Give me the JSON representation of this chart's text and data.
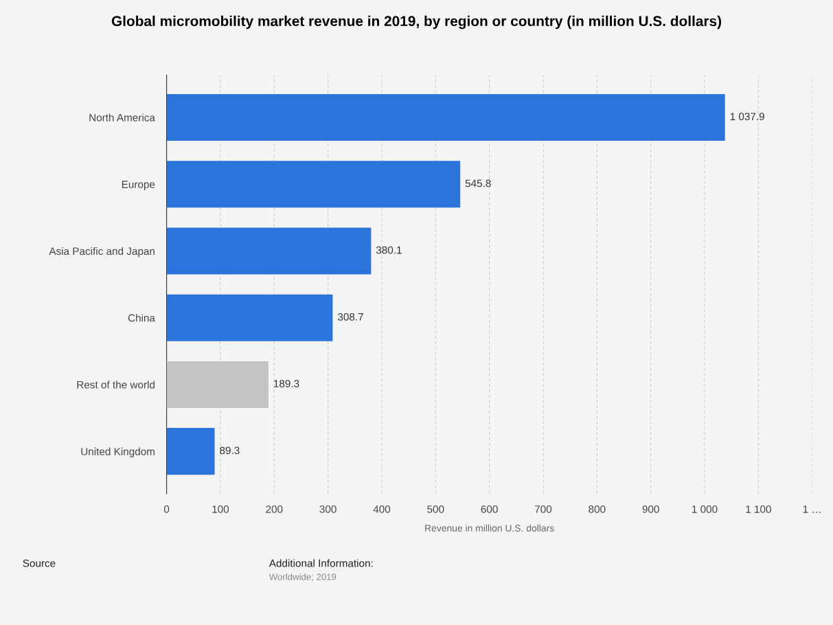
{
  "chart_data": {
    "type": "bar",
    "orientation": "horizontal",
    "title": "Global micromobility market revenue in 2019, by region or country (in million U.S. dollars)",
    "xlabel": "Revenue in million U.S. dollars",
    "categories": [
      "North America",
      "Europe",
      "Asia Pacific and Japan",
      "China",
      "Rest of the world",
      "United Kingdom"
    ],
    "values": [
      1037.9,
      545.8,
      380.1,
      308.7,
      189.3,
      89.3
    ],
    "value_labels": [
      "1 037.9",
      "545.8",
      "380.1",
      "308.7",
      "189.3",
      "89.3"
    ],
    "colors": [
      "#2a74dc",
      "#2a74dc",
      "#2a74dc",
      "#2a74dc",
      "#c4c4c4",
      "#2a74dc"
    ],
    "xlim": [
      0,
      1200
    ],
    "xticks": [
      0,
      100,
      200,
      300,
      400,
      500,
      600,
      700,
      800,
      900,
      {
        "value": 1000,
        "label": "1 000"
      },
      {
        "value": 1100,
        "label": "1 100"
      },
      {
        "value": 1200,
        "label": "1 …"
      }
    ],
    "grid": "x",
    "annotations": [
      "Source",
      "Additional Information:",
      "Worldwide; 2019"
    ]
  }
}
